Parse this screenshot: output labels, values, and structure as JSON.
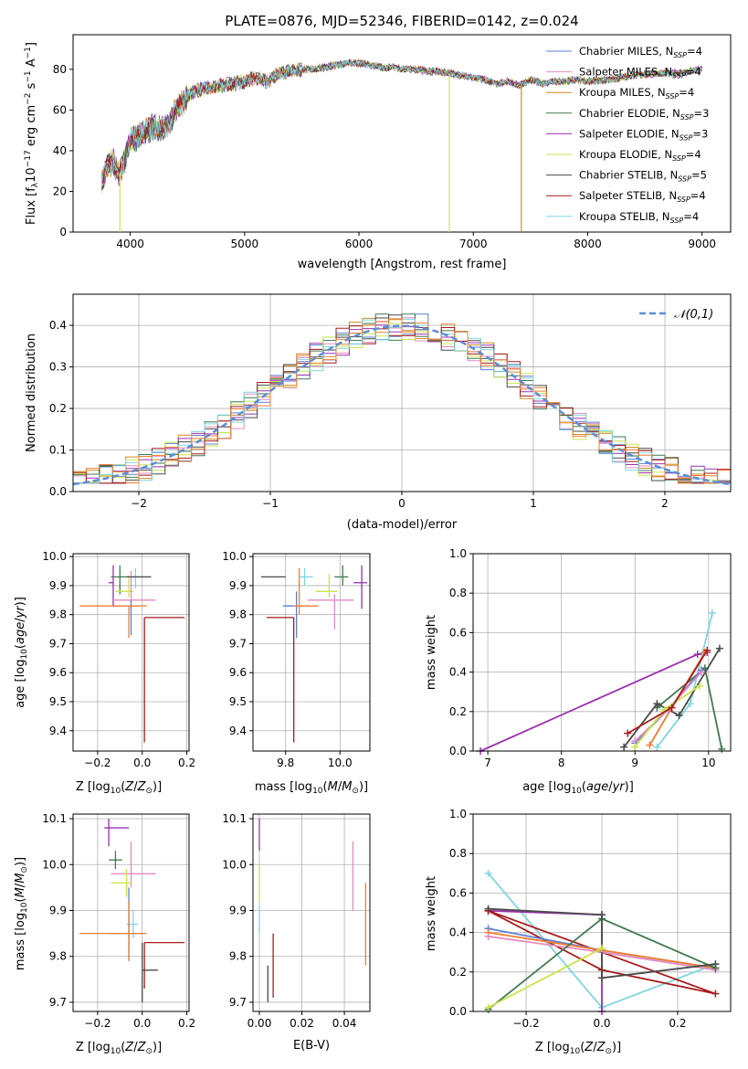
{
  "figure": {
    "title": "PLATE=0876, MJD=52346, FIBERID=0142, z=0.024"
  },
  "colors": {
    "Chabrier MILES": "#5b7fd6",
    "Salpeter MILES": "#e58ac0",
    "Kroupa MILES": "#d08a22",
    "Chabrier ELODIE": "#3f7a4f",
    "Salpeter ELODIE": "#9b30b0",
    "Kroupa ELODIE": "#c9e64a",
    "Chabrier STELIB": "#4a4a4a",
    "Salpeter STELIB": "#a81c1c",
    "Kroupa STELIB": "#7fd6e0",
    "extra_orange": "#f07f30"
  },
  "legend_spectrum": [
    {
      "label": "Chabrier MILES, N",
      "sub": "SSP",
      "suffix": "=4",
      "color": "#5b7fd6"
    },
    {
      "label": "Salpeter MILES, N",
      "sub": "SSP",
      "suffix": "=4",
      "color": "#e58ac0"
    },
    {
      "label": "Kroupa MILES, N",
      "sub": "SSP",
      "suffix": "=4",
      "color": "#d08a22"
    },
    {
      "label": "Chabrier ELODIE, N",
      "sub": "SSP",
      "suffix": "=3",
      "color": "#3f7a4f"
    },
    {
      "label": "Salpeter ELODIE, N",
      "sub": "SSP",
      "suffix": "=3",
      "color": "#9b30b0"
    },
    {
      "label": "Kroupa ELODIE, N",
      "sub": "SSP",
      "suffix": "=4",
      "color": "#c9e64a"
    },
    {
      "label": "Chabrier STELIB, N",
      "sub": "SSP",
      "suffix": "=5",
      "color": "#4a4a4a"
    },
    {
      "label": "Salpeter STELIB, N",
      "sub": "SSP",
      "suffix": "=4",
      "color": "#a81c1c"
    },
    {
      "label": "Kroupa STELIB, N",
      "sub": "SSP",
      "suffix": "=4",
      "color": "#7fd6e0"
    }
  ],
  "chart_data": [
    {
      "type": "line",
      "xlabel": "wavelength [Angstrom, rest frame]",
      "ylabel": "Flux [f_λ 10^-17 erg cm^-2 s^-1 A^-1]",
      "xlim": [
        3500,
        9250
      ],
      "ylim": [
        0,
        97
      ],
      "xticks": [
        4000,
        5000,
        6000,
        7000,
        8000,
        9000
      ],
      "yticks": [
        0,
        20,
        40,
        60,
        80
      ],
      "grid": false,
      "legend": "top-right",
      "spectrum_knots": [
        [
          3750,
          25
        ],
        [
          3800,
          32
        ],
        [
          3850,
          35
        ],
        [
          3900,
          28
        ],
        [
          3950,
          35
        ],
        [
          4000,
          45
        ],
        [
          4100,
          48
        ],
        [
          4200,
          52
        ],
        [
          4300,
          50
        ],
        [
          4400,
          60
        ],
        [
          4500,
          67
        ],
        [
          4600,
          70
        ],
        [
          4700,
          71
        ],
        [
          4800,
          72
        ],
        [
          4900,
          73
        ],
        [
          5000,
          74
        ],
        [
          5100,
          76
        ],
        [
          5200,
          74
        ],
        [
          5300,
          78
        ],
        [
          5400,
          79
        ],
        [
          5500,
          80
        ],
        [
          5600,
          80
        ],
        [
          5700,
          81
        ],
        [
          5800,
          82
        ],
        [
          5900,
          83
        ],
        [
          6000,
          83
        ],
        [
          6100,
          82
        ],
        [
          6200,
          81
        ],
        [
          6300,
          81
        ],
        [
          6400,
          80
        ],
        [
          6500,
          80
        ],
        [
          6600,
          79
        ],
        [
          6700,
          79
        ],
        [
          6800,
          78
        ],
        [
          6900,
          77
        ],
        [
          7000,
          76
        ],
        [
          7100,
          75
        ],
        [
          7200,
          73
        ],
        [
          7300,
          74
        ],
        [
          7400,
          72
        ],
        [
          7500,
          75
        ],
        [
          7600,
          73
        ],
        [
          7700,
          74
        ],
        [
          7800,
          74
        ],
        [
          7900,
          75
        ],
        [
          8000,
          74
        ],
        [
          8200,
          75
        ],
        [
          8400,
          77
        ],
        [
          8600,
          78
        ],
        [
          8800,
          78
        ],
        [
          9000,
          80
        ]
      ],
      "dropouts": [
        [
          3910,
          "#c9e64a"
        ],
        [
          6790,
          "#c9e64a"
        ],
        [
          7420,
          "#d08a22"
        ]
      ]
    },
    {
      "type": "step",
      "xlabel": "(data-model)/error",
      "ylabel": "Normed distribution",
      "xlim": [
        -2.5,
        2.5
      ],
      "ylim": [
        0,
        0.475
      ],
      "xticks": [
        -2,
        -1,
        0,
        1,
        2
      ],
      "yticks": [
        0.0,
        0.1,
        0.2,
        0.3,
        0.4
      ],
      "grid": true,
      "bin_width": 0.1,
      "legend": "top-right",
      "reference_curve": {
        "name": "𝒩(0,1)",
        "color": "#5b8ed8"
      }
    },
    {
      "type": "errorbar",
      "id": "Z_age",
      "xlabel": "Z [log10(Z/Z⊙)]",
      "ylabel": "age [log10(age/yr)]",
      "xlim": [
        -0.31,
        0.21
      ],
      "ylim": [
        9.33,
        10.01
      ],
      "xticks": [
        -0.2,
        0.0,
        0.2
      ],
      "yticks": [
        9.4,
        9.5,
        9.6,
        9.7,
        9.8,
        9.9,
        10.0
      ],
      "grid": true,
      "points": [
        {
          "x": -0.1,
          "xerr": [
            0.04,
            0.04
          ],
          "y": 9.93,
          "yerr": [
            0.06,
            0.04
          ],
          "color": "#3f7a4f"
        },
        {
          "x": -0.13,
          "xerr": [
            0.02,
            0.0
          ],
          "y": 9.91,
          "yerr": [
            0.08,
            0.06
          ],
          "color": "#9b30b0"
        },
        {
          "x": -0.06,
          "xerr": [
            0.06,
            0.02
          ],
          "y": 9.88,
          "yerr": [
            0.02,
            0.05
          ],
          "color": "#c9e64a"
        },
        {
          "x": -0.03,
          "xerr": [
            0.02,
            0.02
          ],
          "y": 9.93,
          "yerr": [
            0.04,
            0.03
          ],
          "color": "#7fd6e0"
        },
        {
          "x": -0.05,
          "xerr": [
            0.08,
            0.11
          ],
          "y": 9.85,
          "yerr": [
            0.03,
            0.1
          ],
          "color": "#e58ac0"
        },
        {
          "x": -0.05,
          "xerr": [
            0.09,
            0.03
          ],
          "y": 9.83,
          "yerr": [
            0.1,
            0.02
          ],
          "color": "#5b7fd6"
        },
        {
          "x": -0.06,
          "xerr": [
            0.22,
            0.08
          ],
          "y": 9.83,
          "yerr": [
            0.11,
            0.0
          ],
          "color": "#f07f30"
        },
        {
          "x": 0.0,
          "xerr": [
            0.07,
            0.04
          ],
          "y": 9.93,
          "yerr": [
            0.0,
            0.0
          ],
          "color": "#4a4a4a"
        },
        {
          "x": 0.01,
          "xerr": [
            0.0,
            0.18
          ],
          "y": 9.79,
          "yerr": [
            0.43,
            0.0
          ],
          "color": "#a81c1c"
        }
      ]
    },
    {
      "type": "errorbar",
      "id": "mass_age",
      "xlabel": "mass [log10(M/M⊙)]",
      "ylabel": "",
      "xlim": [
        9.68,
        10.11
      ],
      "ylim": [
        9.33,
        10.01
      ],
      "xticks": [
        9.8,
        10.0
      ],
      "yticks": [
        9.4,
        9.5,
        9.6,
        9.7,
        9.8,
        9.9,
        10.0
      ],
      "grid": true,
      "points": [
        {
          "x": 9.77,
          "xerr": [
            0.06,
            0.03
          ],
          "y": 9.93,
          "yerr": [
            0.0,
            0.0
          ],
          "color": "#4a4a4a"
        },
        {
          "x": 10.08,
          "xerr": [
            0.03,
            0.02
          ],
          "y": 9.91,
          "yerr": [
            0.09,
            0.06
          ],
          "color": "#9b30b0"
        },
        {
          "x": 10.01,
          "xerr": [
            0.03,
            0.02
          ],
          "y": 9.93,
          "yerr": [
            0.03,
            0.04
          ],
          "color": "#3f7a4f"
        },
        {
          "x": 9.87,
          "xerr": [
            0.02,
            0.03
          ],
          "y": 9.93,
          "yerr": [
            0.03,
            0.03
          ],
          "color": "#7fd6e0"
        },
        {
          "x": 9.96,
          "xerr": [
            0.05,
            0.03
          ],
          "y": 9.88,
          "yerr": [
            0.02,
            0.06
          ],
          "color": "#c9e64a"
        },
        {
          "x": 9.98,
          "xerr": [
            0.1,
            0.07
          ],
          "y": 9.85,
          "yerr": [
            0.1,
            0.02
          ],
          "color": "#e58ac0"
        },
        {
          "x": 9.84,
          "xerr": [
            0.05,
            0.05
          ],
          "y": 9.83,
          "yerr": [
            0.11,
            0.05
          ],
          "color": "#5b7fd6"
        },
        {
          "x": 9.85,
          "xerr": [
            0.02,
            0.07
          ],
          "y": 9.83,
          "yerr": [
            0.03,
            0.13
          ],
          "color": "#f07f30"
        },
        {
          "x": 9.83,
          "xerr": [
            0.1,
            0.0
          ],
          "y": 9.79,
          "yerr": [
            0.43,
            0.0
          ],
          "color": "#a81c1c"
        }
      ]
    },
    {
      "type": "line",
      "id": "age_weight",
      "xlabel": "age [log10(age/yr)]",
      "ylabel": "mass weight",
      "xlim": [
        6.8,
        10.3
      ],
      "ylim": [
        0,
        1.0
      ],
      "xticks": [
        7,
        8,
        9,
        10
      ],
      "yticks": [
        0.0,
        0.2,
        0.4,
        0.6,
        0.8,
        1.0
      ],
      "grid": true,
      "series": [
        {
          "color": "#9b30b0",
          "x": [
            6.9,
            9.85,
            9.98
          ],
          "y": [
            0.0,
            0.49,
            0.5
          ]
        },
        {
          "color": "#7fd6e0",
          "x": [
            9.3,
            9.75,
            10.05
          ],
          "y": [
            0.02,
            0.24,
            0.7
          ]
        },
        {
          "color": "#3f7a4f",
          "x": [
            9.3,
            9.95,
            10.18
          ],
          "y": [
            0.22,
            0.42,
            0.01
          ]
        },
        {
          "color": "#4a4a4a",
          "x": [
            8.85,
            9.3,
            9.6,
            10.15
          ],
          "y": [
            0.02,
            0.24,
            0.18,
            0.52
          ]
        },
        {
          "color": "#f07f30",
          "x": [
            9.2,
            9.5,
            9.95
          ],
          "y": [
            0.03,
            0.22,
            0.5
          ]
        },
        {
          "color": "#5b7fd6",
          "x": [
            9.0,
            9.45,
            9.9
          ],
          "y": [
            0.04,
            0.21,
            0.41
          ]
        },
        {
          "color": "#e58ac0",
          "x": [
            9.0,
            9.45,
            9.9
          ],
          "y": [
            0.05,
            0.21,
            0.4
          ]
        },
        {
          "color": "#c9e64a",
          "x": [
            9.0,
            9.4,
            9.88
          ],
          "y": [
            0.02,
            0.21,
            0.33
          ]
        },
        {
          "color": "#a81c1c",
          "x": [
            8.9,
            9.5,
            9.98
          ],
          "y": [
            0.09,
            0.22,
            0.51
          ]
        }
      ]
    },
    {
      "type": "errorbar",
      "id": "Z_mass",
      "xlabel": "Z [log10(Z/Z⊙)]",
      "ylabel": "mass [log10(M/M⊙)]",
      "xlim": [
        -0.31,
        0.21
      ],
      "ylim": [
        9.68,
        10.11
      ],
      "xticks": [
        -0.2,
        0.0,
        0.2
      ],
      "yticks": [
        9.7,
        9.8,
        9.9,
        10.0,
        10.1
      ],
      "grid": true,
      "points": [
        {
          "x": -0.15,
          "xerr": [
            0.02,
            0.09
          ],
          "y": 10.08,
          "yerr": [
            0.04,
            0.02
          ],
          "color": "#9b30b0"
        },
        {
          "x": -0.12,
          "xerr": [
            0.03,
            0.03
          ],
          "y": 10.01,
          "yerr": [
            0.02,
            0.02
          ],
          "color": "#3f7a4f"
        },
        {
          "x": -0.05,
          "xerr": [
            0.09,
            0.11
          ],
          "y": 9.98,
          "yerr": [
            0.03,
            0.07
          ],
          "color": "#e58ac0"
        },
        {
          "x": -0.07,
          "xerr": [
            0.07,
            0.02
          ],
          "y": 9.96,
          "yerr": [
            0.03,
            0.03
          ],
          "color": "#c9e64a"
        },
        {
          "x": -0.04,
          "xerr": [
            0.03,
            0.02
          ],
          "y": 9.87,
          "yerr": [
            0.03,
            0.03
          ],
          "color": "#7fd6e0"
        },
        {
          "x": -0.06,
          "xerr": [
            0.09,
            0.06
          ],
          "y": 9.85,
          "yerr": [
            0.06,
            0.1
          ],
          "color": "#5b7fd6"
        },
        {
          "x": -0.06,
          "xerr": [
            0.22,
            0.08
          ],
          "y": 9.85,
          "yerr": [
            0.06,
            0.07
          ],
          "color": "#f07f30"
        },
        {
          "x": 0.01,
          "xerr": [
            0.0,
            0.18
          ],
          "y": 9.83,
          "yerr": [
            0.1,
            0.0
          ],
          "color": "#a81c1c"
        },
        {
          "x": 0.0,
          "xerr": [
            0.0,
            0.07
          ],
          "y": 9.77,
          "yerr": [
            0.07,
            0.06
          ],
          "color": "#4a4a4a"
        }
      ]
    },
    {
      "type": "errorbar",
      "id": "EBV_mass",
      "xlabel": "E(B-V)",
      "ylabel": "",
      "xlim": [
        -0.003,
        0.052
      ],
      "ylim": [
        9.68,
        10.11
      ],
      "xticks": [
        0.0,
        0.02,
        0.04
      ],
      "yticks": [
        9.7,
        9.8,
        9.9,
        10.0,
        10.1
      ],
      "grid": true,
      "points": [
        {
          "x": 0.0,
          "xerr": [
            0,
            0
          ],
          "y": 10.07,
          "yerr": [
            0.04,
            0.03
          ],
          "color": "#9b30b0"
        },
        {
          "x": 0.0,
          "xerr": [
            0,
            0
          ],
          "y": 9.96,
          "yerr": [
            0.04,
            0.04
          ],
          "color": "#c9e64a"
        },
        {
          "x": 0.0,
          "xerr": [
            0,
            0
          ],
          "y": 9.88,
          "yerr": [
            0.03,
            0.03
          ],
          "color": "#7fd6e0"
        },
        {
          "x": 0.004,
          "xerr": [
            0,
            0
          ],
          "y": 9.74,
          "yerr": [
            0.04,
            0.04
          ],
          "color": "#4a4a4a"
        },
        {
          "x": 0.0065,
          "xerr": [
            0,
            0
          ],
          "y": 9.78,
          "yerr": [
            0.07,
            0.07
          ],
          "color": "#a81c1c"
        },
        {
          "x": 0.044,
          "xerr": [
            0,
            0
          ],
          "y": 9.98,
          "yerr": [
            0.08,
            0.07
          ],
          "color": "#e58ac0"
        },
        {
          "x": 0.05,
          "xerr": [
            0,
            0
          ],
          "y": 9.87,
          "yerr": [
            0.09,
            0.09
          ],
          "color": "#f07f30"
        }
      ]
    },
    {
      "type": "line",
      "id": "Z_weight",
      "xlabel": "Z [log10(Z/Z⊙)]",
      "ylabel": "mass weight",
      "xlim": [
        -0.34,
        0.34
      ],
      "ylim": [
        0,
        1.0
      ],
      "xticks": [
        -0.2,
        0.0,
        0.2
      ],
      "yticks": [
        0.0,
        0.2,
        0.4,
        0.6,
        0.8,
        1.0
      ],
      "grid": true,
      "series": [
        {
          "color": "#7fd6e0",
          "x": [
            -0.3,
            0.0,
            0.3
          ],
          "y": [
            0.7,
            0.02,
            0.24
          ]
        },
        {
          "color": "#9b30b0",
          "x": [
            -0.3,
            0.0,
            0.0
          ],
          "y": [
            0.51,
            0.49,
            0.0
          ]
        },
        {
          "color": "#a81c1c",
          "x": [
            -0.3,
            0.0,
            0.3,
            -0.3
          ],
          "y": [
            0.51,
            0.21,
            0.09,
            0.51
          ]
        },
        {
          "color": "#5b7fd6",
          "x": [
            -0.3,
            0.0,
            0.3
          ],
          "y": [
            0.42,
            0.31,
            0.22
          ]
        },
        {
          "color": "#f07f30",
          "x": [
            -0.3,
            0.0,
            0.3
          ],
          "y": [
            0.4,
            0.31,
            0.22
          ]
        },
        {
          "color": "#e58ac0",
          "x": [
            -0.3,
            0.0,
            0.3
          ],
          "y": [
            0.38,
            0.3,
            0.21
          ]
        },
        {
          "color": "#3f7a4f",
          "x": [
            -0.3,
            0.0,
            0.3
          ],
          "y": [
            0.01,
            0.47,
            0.22
          ]
        },
        {
          "color": "#4a4a4a",
          "x": [
            -0.3,
            0.0,
            0.0,
            0.3
          ],
          "y": [
            0.52,
            0.49,
            0.17,
            0.24
          ]
        },
        {
          "color": "#c9e64a",
          "x": [
            -0.3,
            0.0
          ],
          "y": [
            0.02,
            0.32
          ]
        }
      ]
    }
  ]
}
